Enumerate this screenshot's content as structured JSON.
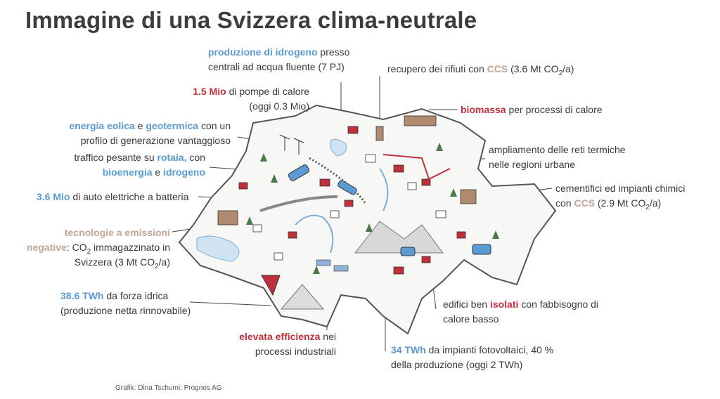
{
  "title": "Immagine di una Svizzera clima-neutrale",
  "credit": "Grafik: Dina Tschumi; Prognos AG",
  "labels": {
    "hydrogen": {
      "h1": "produzione di idrogeno",
      "t1": " presso",
      "line2": "centrali ad acqua fluente (7 PJ)"
    },
    "waste": {
      "t1": "recupero dei rifiuti con ",
      "h1": "CCS",
      "t2": " (3.6 Mt CO",
      "sub": "2",
      "t3": "/a)"
    },
    "heatpumps": {
      "h1": "1.5 Mio",
      "t1": " di pompe di calore",
      "line2": "(oggi 0.3 Mio)"
    },
    "biomass": {
      "h1": "biomassa",
      "t1": " per processi di calore"
    },
    "wind": {
      "h1": "energia eolica",
      "t1": " e ",
      "h2": "geotermica",
      "t2": " con un",
      "line2": "profilo di generazione vantaggioso"
    },
    "district": {
      "line1": "ampliamento delle reti termiche",
      "line2": "nelle regioni urbane"
    },
    "freight": {
      "t1": "traffico pesante su ",
      "h1": "rotaia,",
      "t2": " con",
      "h2": "bioenergia",
      "t3": " e ",
      "h3": "idrogeno"
    },
    "cement": {
      "line1": "cementifici ed impianti chimici",
      "t1": "con ",
      "h1": "CCS",
      "t2": " (2.9 Mt CO",
      "sub": "2",
      "t3": "/a)"
    },
    "ev": {
      "h1": "3.6 Mio",
      "t1": " di auto elettriche a batteria"
    },
    "negative": {
      "h1": "tecnologie a emissioni",
      "h2": "negative",
      "t1": ": CO",
      "sub": "2",
      "t2": " immagazzinato in",
      "line3a": "Svizzera (3 Mt CO",
      "sub2": "2",
      "line3b": "/a)"
    },
    "hydro": {
      "h1": "38.6 TWh",
      "t1": " da forza idrica",
      "line2": "(produzione netta rinnovabile)"
    },
    "buildings": {
      "t1": "edifici ben ",
      "h1": "isolati",
      "t2": " con fabbisogno di",
      "line2": "calore basso"
    },
    "efficiency": {
      "h1": "elevata efficienza",
      "t1": " nei",
      "line2": "processi industriali"
    },
    "solar": {
      "h1": "34 TWh",
      "t1": " da impianti fotovoltaici, 40 %",
      "line2": "della produzione (oggi 2 TWh)"
    }
  },
  "colors": {
    "blue": "#5b9bd5",
    "red": "#c0303a",
    "tan": "#c4a592",
    "text": "#3a3a3a"
  }
}
